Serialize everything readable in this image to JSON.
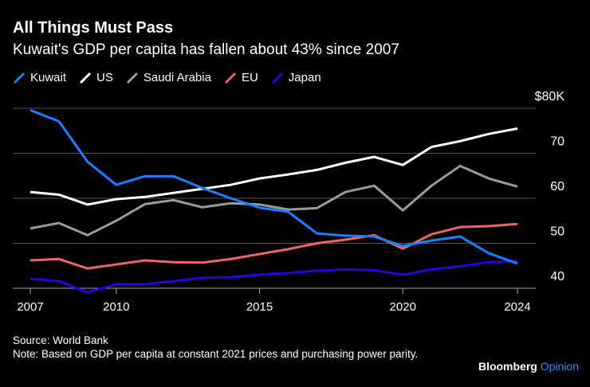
{
  "header": {
    "title": "All Things Must Pass",
    "subtitle": "Kuwait's GDP per capita has fallen about 43% since 2007"
  },
  "chart_data": {
    "type": "line",
    "x": [
      2007,
      2008,
      2009,
      2010,
      2011,
      2012,
      2013,
      2014,
      2015,
      2016,
      2017,
      2018,
      2019,
      2020,
      2021,
      2022,
      2023,
      2024
    ],
    "series": [
      {
        "name": "Kuwait",
        "color": "#1a7fff",
        "values": [
          79.6,
          77.1,
          68.1,
          63.0,
          64.9,
          64.9,
          62.3,
          60.0,
          57.9,
          57.0,
          52.2,
          51.7,
          51.5,
          49.4,
          50.6,
          51.5,
          47.8,
          45.5
        ]
      },
      {
        "name": "US",
        "color": "#ffffff",
        "values": [
          61.4,
          60.8,
          58.6,
          59.8,
          60.3,
          61.2,
          62.1,
          63.0,
          64.4,
          65.3,
          66.3,
          67.9,
          69.2,
          67.4,
          71.4,
          72.7,
          74.3,
          75.5
        ]
      },
      {
        "name": "Saudi Arabia",
        "color": "#9a9a9a",
        "values": [
          53.3,
          54.5,
          51.8,
          55.0,
          58.7,
          59.6,
          58.0,
          58.9,
          58.6,
          57.5,
          57.8,
          61.4,
          62.8,
          57.3,
          62.8,
          67.2,
          64.4,
          62.6
        ]
      },
      {
        "name": "EU",
        "color": "#f06467",
        "values": [
          46.2,
          46.5,
          44.4,
          45.3,
          46.2,
          45.8,
          45.7,
          46.5,
          47.6,
          48.7,
          50.0,
          50.8,
          51.8,
          48.8,
          52.0,
          53.6,
          53.8,
          54.3
        ]
      },
      {
        "name": "Japan",
        "color": "#2a00e0",
        "values": [
          42.1,
          41.6,
          39.1,
          40.9,
          40.9,
          41.6,
          42.3,
          42.5,
          43.0,
          43.4,
          43.9,
          44.2,
          44.0,
          43.0,
          44.2,
          44.9,
          45.8,
          46.0
        ]
      }
    ],
    "yticks": [
      40,
      50,
      60,
      70,
      80
    ],
    "ytick_labels": [
      "40",
      "50",
      "60",
      "70",
      "$80K"
    ],
    "xticks": [
      2007,
      2010,
      2015,
      2020,
      2024
    ],
    "xtick_labels": [
      "2007",
      "2010",
      "2015",
      "2020",
      "2024"
    ],
    "ylim": [
      40,
      80
    ],
    "xlim": [
      2007,
      2024
    ],
    "grid": true,
    "legend_position": "top-left"
  },
  "footer": {
    "source": "Source: World Bank",
    "note": "Note: Based on GDP per capita at constant 2021 prices and purchasing power parity.",
    "brand": "Bloomberg",
    "brand_suffix": "Opinion"
  }
}
